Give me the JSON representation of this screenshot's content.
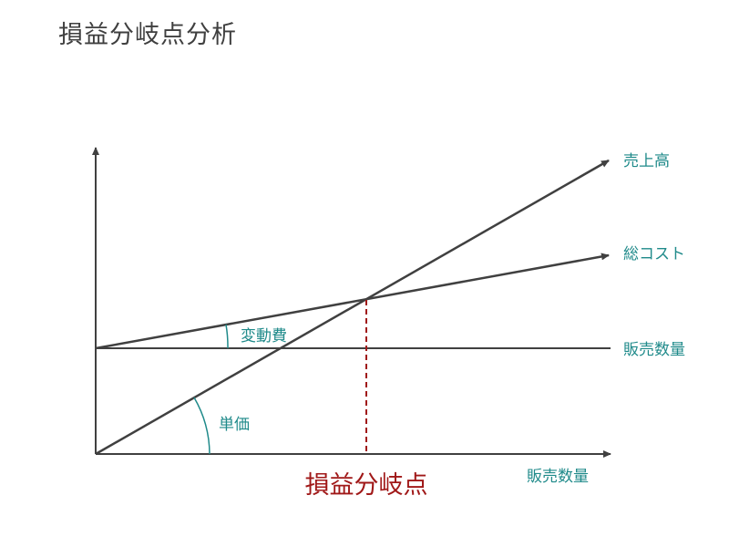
{
  "title": "損益分岐点分析",
  "labels": {
    "sales": "売上高",
    "total_cost": "総コスト",
    "fixed_cost_line": "販売数量",
    "variable_cost": "変動費",
    "unit_price": "単価",
    "x_axis": "販売数量",
    "break_even": "損益分岐点"
  },
  "colors": {
    "line": "#404040",
    "label_teal": "#1f8a8a",
    "break_even_red": "#a01818",
    "title": "#3f3f3f"
  }
}
